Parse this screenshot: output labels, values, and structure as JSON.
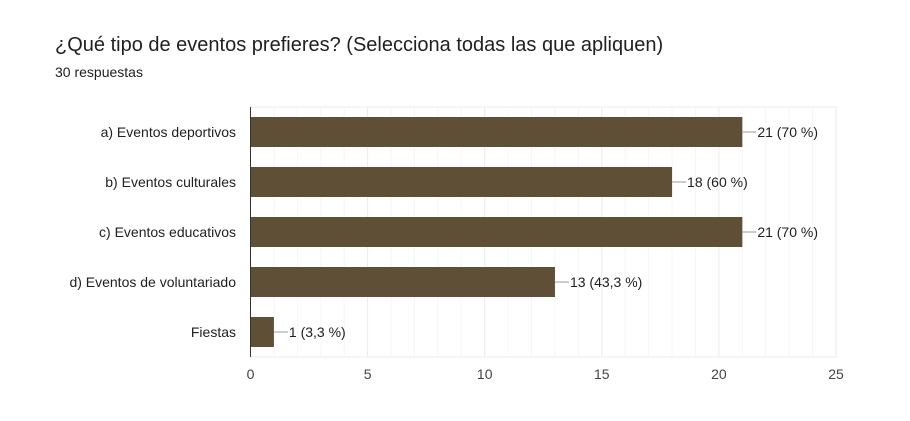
{
  "question": {
    "title": "¿Qué tipo de eventos prefieres? (Selecciona todas las que apliquen)",
    "responses": "30 respuestas"
  },
  "colors": {
    "bar": "#5f4f37",
    "grid": "#ebebeb",
    "axis": "#333333",
    "text": "#212121"
  },
  "chart_data": {
    "type": "bar",
    "orientation": "horizontal",
    "categories": [
      "a) Eventos deportivos",
      "b) Eventos culturales",
      "c) Eventos educativos",
      "d) Eventos de voluntariado",
      "Fiestas"
    ],
    "values": [
      21,
      18,
      21,
      13,
      1
    ],
    "data_labels": [
      "21 (70 %)",
      "18 (60 %)",
      "21 (70 %)",
      "13 (43,3 %)",
      "1 (3,3 %)"
    ],
    "xlim": [
      0,
      25
    ],
    "xticks": [
      0,
      5,
      10,
      15,
      20,
      25
    ],
    "grid": true,
    "legend": "none"
  }
}
